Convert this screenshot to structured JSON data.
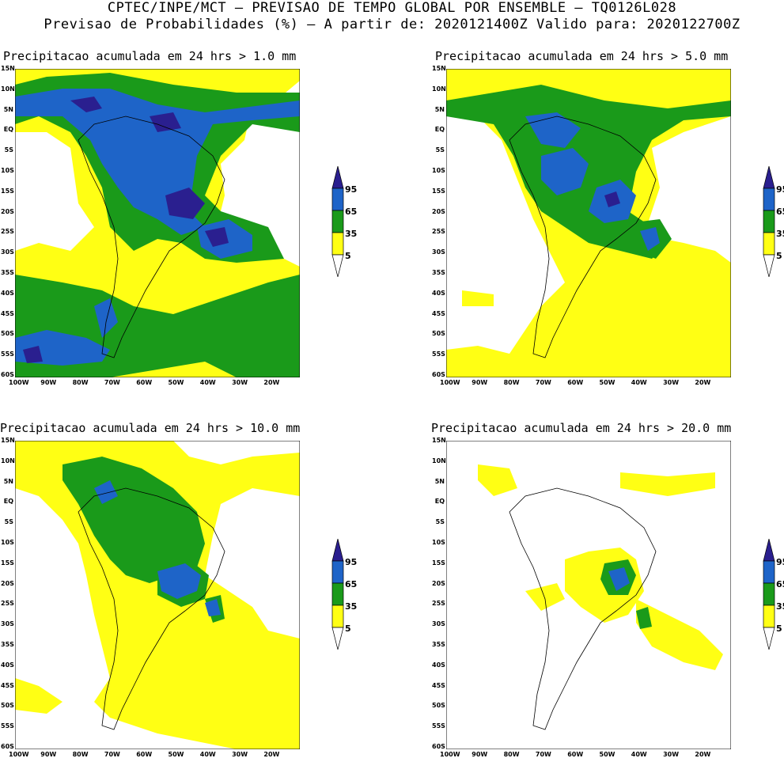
{
  "header": {
    "line1": "CPTEC/INPE/MCT – PREVISAO DE TEMPO GLOBAL POR ENSEMBLE – TQ0126L028",
    "line2": "Previsao de Probabilidades (%) –  A partir de: 2020121400Z  Valido para: 2020122700Z"
  },
  "panels": [
    {
      "title": "Precipitacao acumulada em 24 hrs > 1.0 mm"
    },
    {
      "title": "Precipitacao acumulada em 24 hrs > 5.0 mm"
    },
    {
      "title": "Precipitacao acumulada em 24 hrs > 10.0 mm"
    },
    {
      "title": "Precipitacao acumulada em 24 hrs > 20.0 mm"
    }
  ],
  "lat_labels": [
    "15N",
    "10N",
    "5N",
    "EQ",
    "5S",
    "10S",
    "15S",
    "20S",
    "25S",
    "30S",
    "35S",
    "40S",
    "45S",
    "50S",
    "55S",
    "60S"
  ],
  "lon_labels": [
    "100W",
    "90W",
    "80W",
    "70W",
    "60W",
    "50W",
    "40W",
    "30W",
    "20W"
  ],
  "legend": {
    "levels": [
      "95",
      "65",
      "35",
      "5"
    ],
    "colors": {
      "c95": "#2a1f8f",
      "c65": "#1e64c8",
      "c35": "#1a9a1a",
      "c5": "#ffff14"
    }
  }
}
